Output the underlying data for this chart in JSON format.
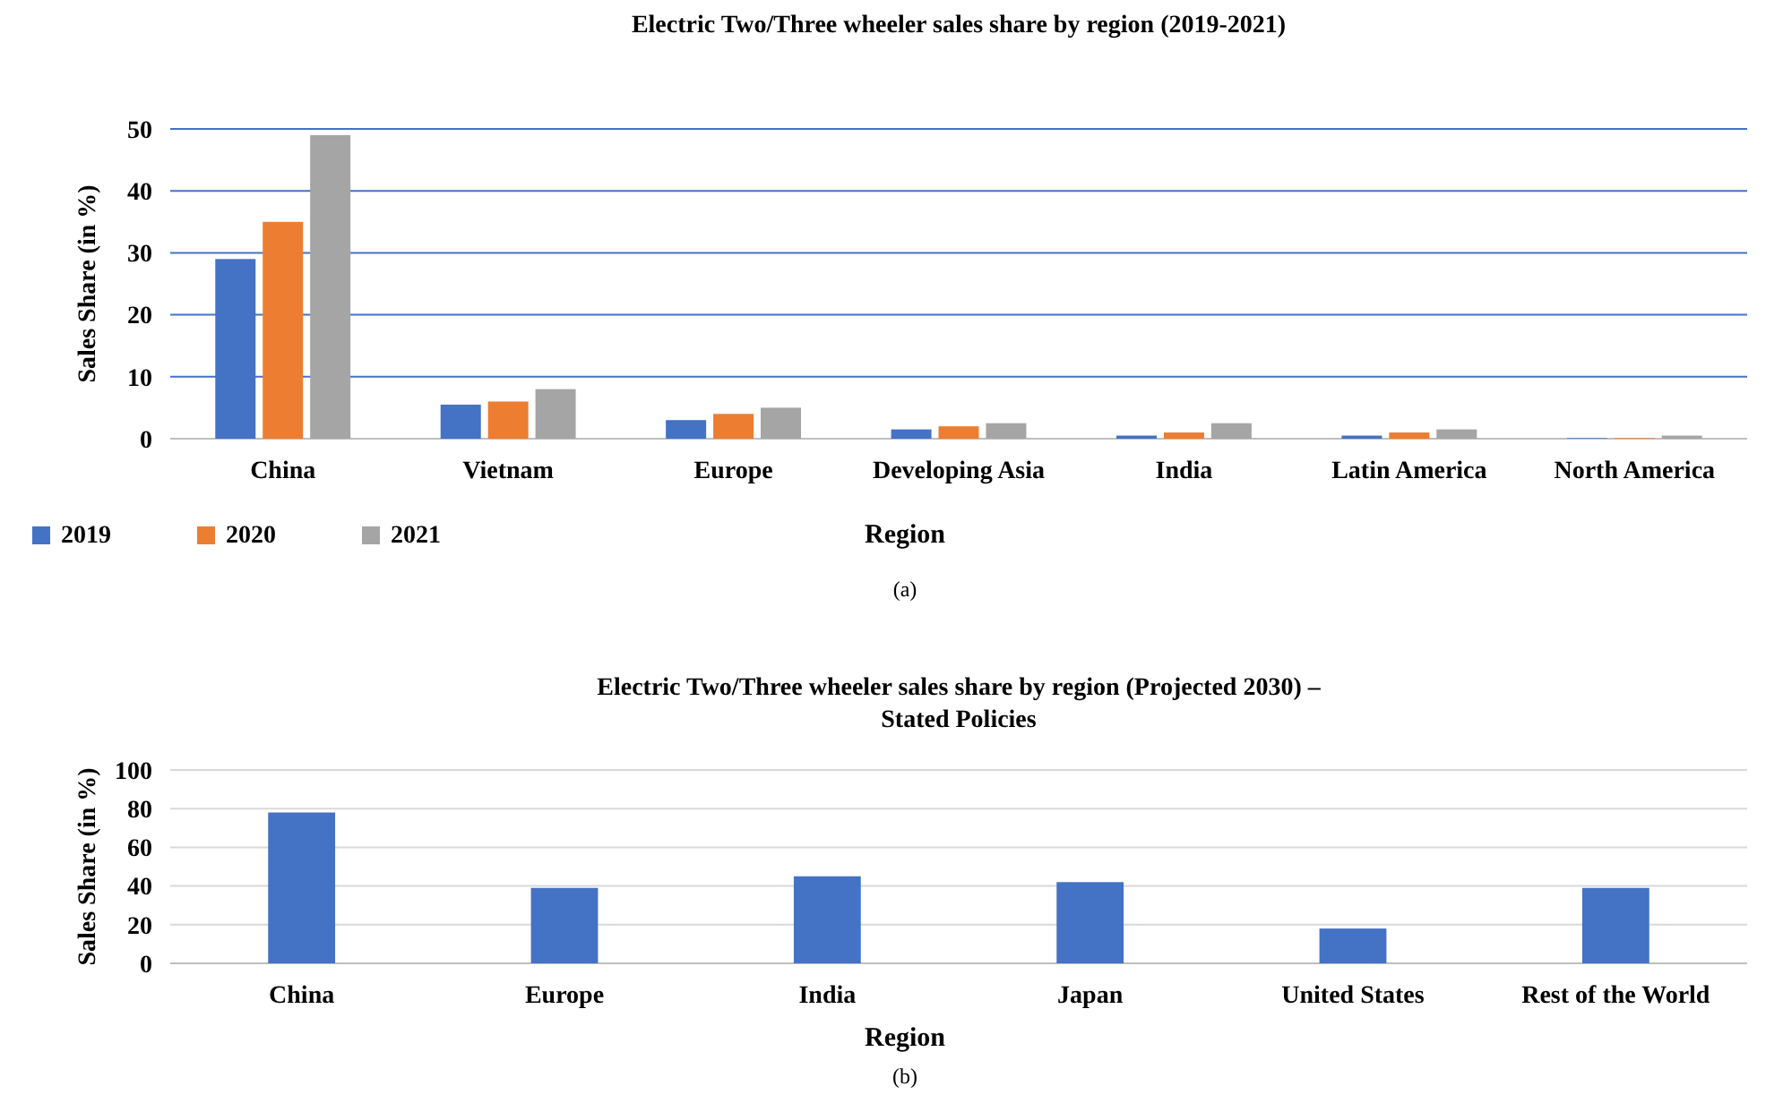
{
  "chart_data": [
    {
      "type": "bar",
      "title": "Electric Two/Three wheeler sales share by region (2019-2021)",
      "xlabel": "Region",
      "ylabel": "Sales Share (in %)",
      "categories": [
        "China",
        "Vietnam",
        "Europe",
        "Developing Asia",
        "India",
        "Latin America",
        "North America"
      ],
      "series": [
        {
          "name": "2019",
          "color": "#4472c4",
          "values": [
            29,
            5.5,
            3,
            1.5,
            0.5,
            0.5,
            0.1
          ]
        },
        {
          "name": "2020",
          "color": "#ed7d31",
          "values": [
            35,
            6,
            4,
            2,
            1,
            1,
            0.1
          ]
        },
        {
          "name": "2021",
          "color": "#a5a5a5",
          "values": [
            49,
            8,
            5,
            2.5,
            2.5,
            1.5,
            0.5
          ]
        }
      ],
      "ylim": [
        0,
        50
      ],
      "yticks": [
        0,
        10,
        20,
        30,
        40,
        50
      ],
      "grid": "y",
      "legend": "bottom left",
      "annotations": [
        "(a)"
      ]
    },
    {
      "type": "bar",
      "title": "Electric Two/Three wheeler sales share by region (Projected 2030) – Stated Policies",
      "xlabel": "Region",
      "ylabel": "Sales Share (in %)",
      "categories": [
        "China",
        "Europe",
        "India",
        "Japan",
        "United States",
        "Rest of the World"
      ],
      "values": [
        78,
        39,
        45,
        42,
        18,
        39
      ],
      "color": "#4472c4",
      "ylim": [
        0,
        100
      ],
      "yticks": [
        0,
        20,
        40,
        60,
        80,
        100
      ],
      "grid": "y",
      "annotations": [
        "(b)"
      ]
    }
  ]
}
